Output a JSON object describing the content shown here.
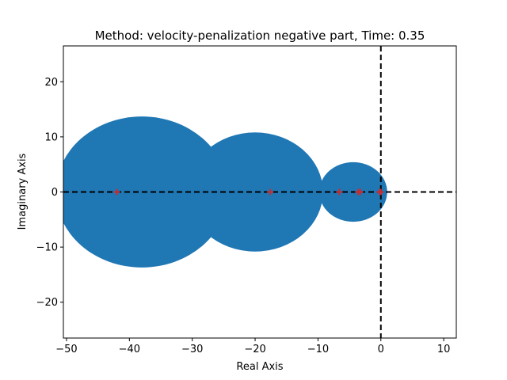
{
  "chart_data": {
    "type": "scatter",
    "title": "Method: velocity-penalization negative part, Time: 0.35",
    "xlabel": "Real Axis",
    "ylabel": "Imaginary Axis",
    "xlim": [
      -50.5,
      12
    ],
    "ylim": [
      -26.5,
      26.5
    ],
    "xticks": [
      -50,
      -40,
      -30,
      -20,
      -10,
      0,
      10
    ],
    "yticks": [
      -20,
      -10,
      0,
      10,
      20
    ],
    "tick_labels_x": [
      "−50",
      "−40",
      "−30",
      "−20",
      "−10",
      "0",
      "10"
    ],
    "tick_labels_y": [
      "−20",
      "−10",
      "0",
      "10",
      "20"
    ],
    "colors": {
      "disc": "#1f77b4",
      "marker": "#d62728",
      "reference_lines": "#000000"
    },
    "discs": [
      {
        "center": -38,
        "radius": 13.7
      },
      {
        "center": -20,
        "radius": 10.8
      },
      {
        "center": -4.4,
        "radius": 5.4
      }
    ],
    "markers": [
      {
        "x": -42,
        "y": 0
      },
      {
        "x": -17.6,
        "y": 0
      },
      {
        "x": -6.6,
        "y": 0
      },
      {
        "x": -3.6,
        "y": 0
      },
      {
        "x": -3.3,
        "y": 0
      },
      {
        "x": -0.2,
        "y": 0
      },
      {
        "x": 0,
        "y": 0
      }
    ],
    "reference_lines": {
      "horizontal_y": 0,
      "vertical_x": 0,
      "style": "dashed"
    },
    "grid": false
  }
}
